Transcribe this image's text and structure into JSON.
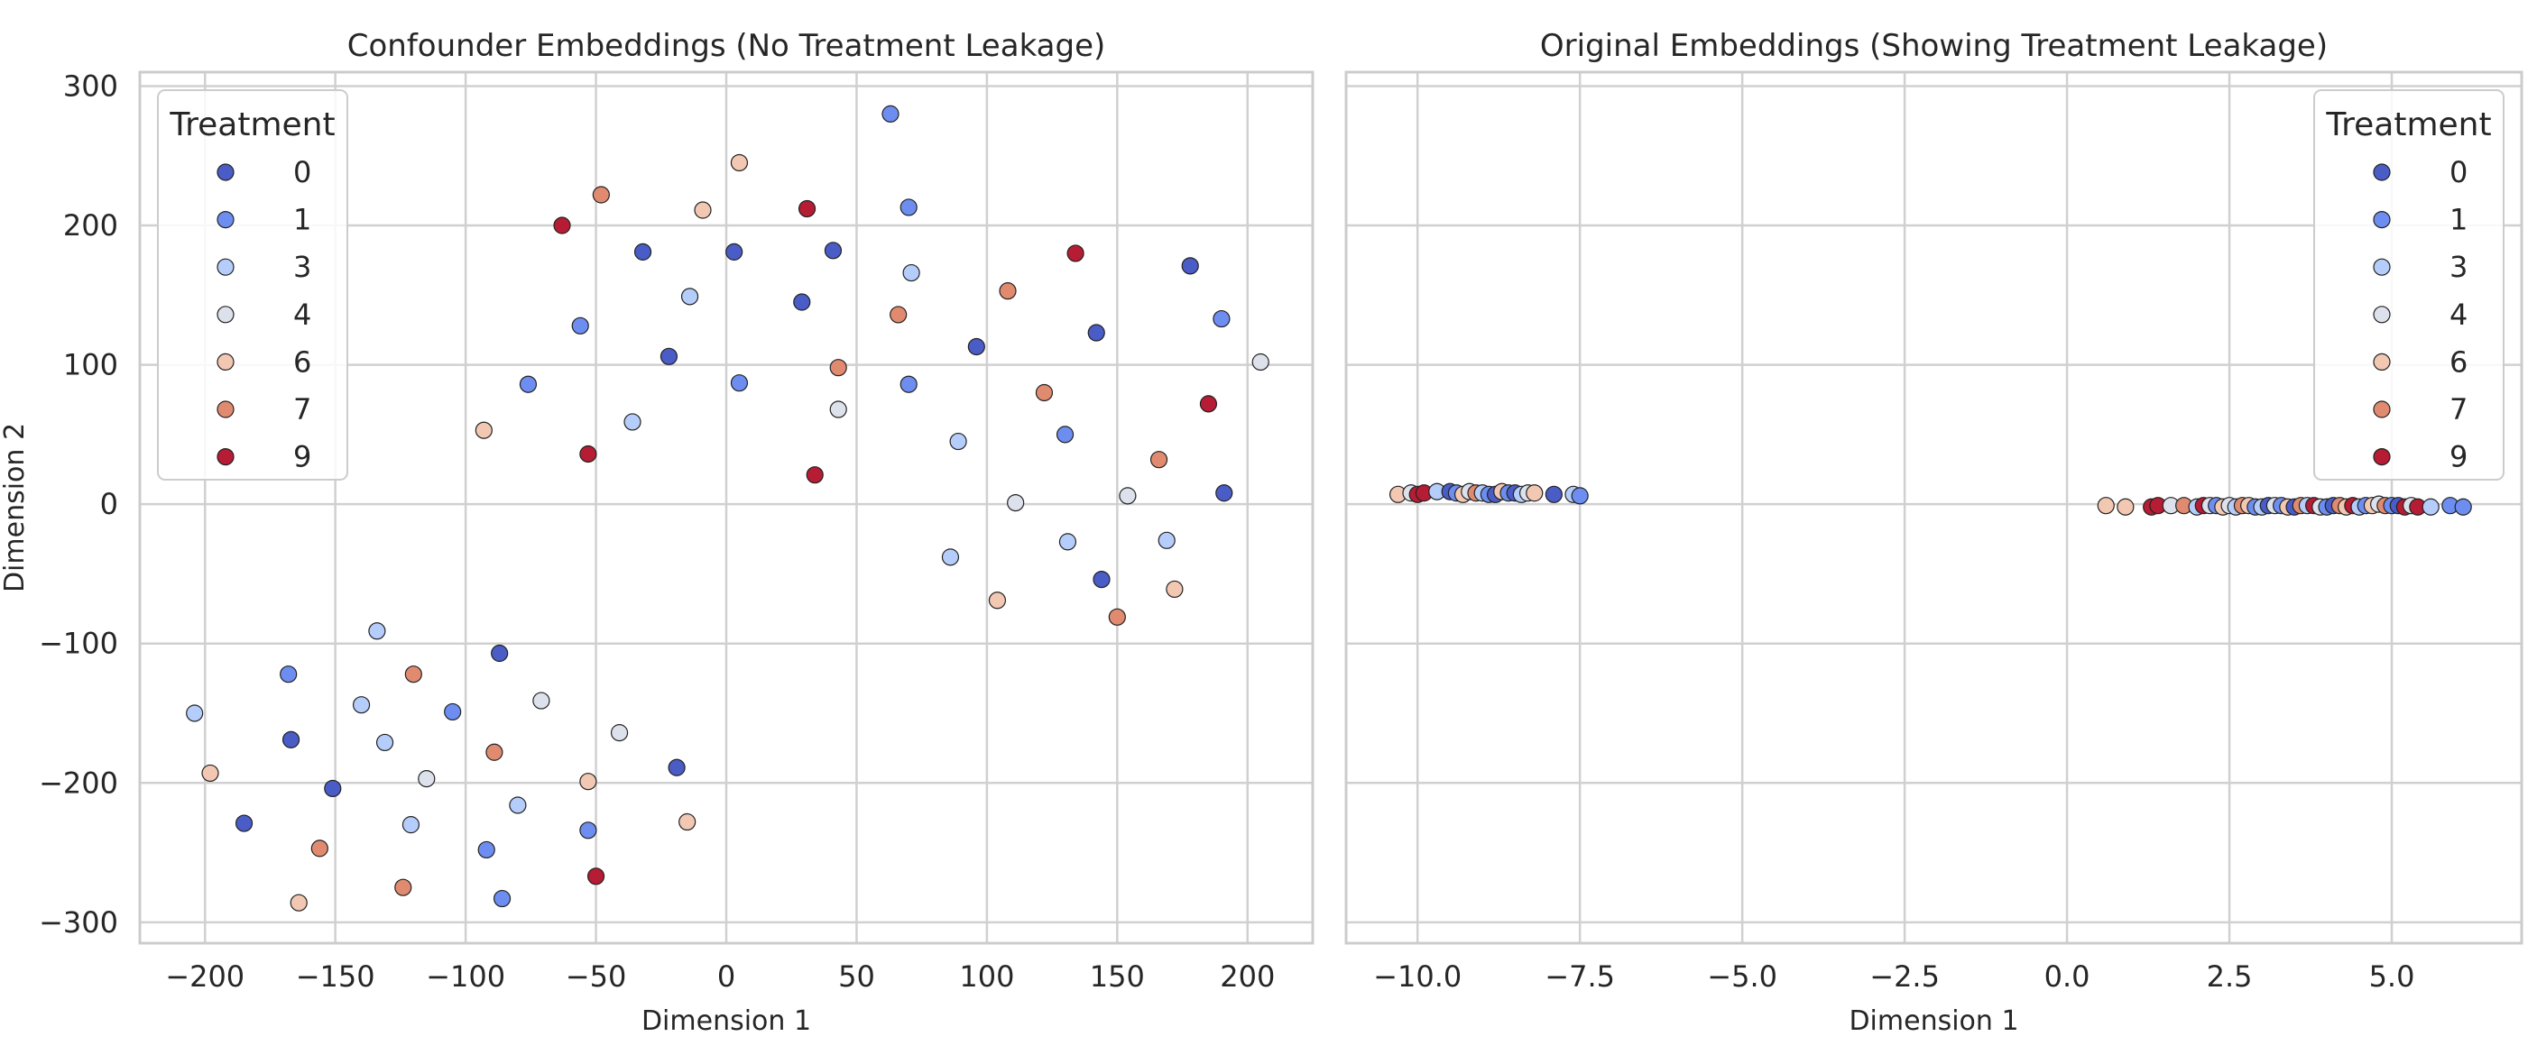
{
  "colors": {
    "0": "#4a5cc6",
    "1": "#6d8ef0",
    "3": "#b5cdfa",
    "4": "#dde1ec",
    "6": "#f2c8b2",
    "7": "#e08b70",
    "9": "#b61c33"
  },
  "chart_data": [
    {
      "type": "scatter",
      "title": "Confounder Embeddings (No Treatment Leakage)",
      "xlabel": "Dimension 1",
      "ylabel": "Dimension 2",
      "xlim": [
        -225,
        225
      ],
      "ylim": [
        -315,
        310
      ],
      "xticks": [
        -200,
        -150,
        -100,
        -50,
        0,
        50,
        100,
        150,
        200
      ],
      "xtick_labels": [
        "−200",
        "−150",
        "−100",
        "−50",
        "0",
        "50",
        "100",
        "150",
        "200"
      ],
      "yticks": [
        300,
        200,
        100,
        0,
        -100,
        -200,
        -300
      ],
      "ytick_labels": [
        "300",
        "200",
        "100",
        "0",
        "−100",
        "−200",
        "−300"
      ],
      "grid": true,
      "legend": {
        "title": "Treatment",
        "position": "upper-left",
        "entries": [
          "0",
          "1",
          "3",
          "4",
          "6",
          "7",
          "9"
        ]
      },
      "points": [
        {
          "x": 63,
          "y": 280,
          "t": 1
        },
        {
          "x": 5,
          "y": 245,
          "t": 6
        },
        {
          "x": -48,
          "y": 222,
          "t": 7
        },
        {
          "x": 70,
          "y": 213,
          "t": 1
        },
        {
          "x": 31,
          "y": 212,
          "t": 9
        },
        {
          "x": -9,
          "y": 211,
          "t": 6
        },
        {
          "x": -63,
          "y": 200,
          "t": 9
        },
        {
          "x": 41,
          "y": 182,
          "t": 0
        },
        {
          "x": -32,
          "y": 181,
          "t": 0
        },
        {
          "x": 3,
          "y": 181,
          "t": 0
        },
        {
          "x": 134,
          "y": 180,
          "t": 9
        },
        {
          "x": 178,
          "y": 171,
          "t": 0
        },
        {
          "x": 71,
          "y": 166,
          "t": 3
        },
        {
          "x": 108,
          "y": 153,
          "t": 7
        },
        {
          "x": -14,
          "y": 149,
          "t": 3
        },
        {
          "x": 29,
          "y": 145,
          "t": 0
        },
        {
          "x": 66,
          "y": 136,
          "t": 7
        },
        {
          "x": 190,
          "y": 133,
          "t": 1
        },
        {
          "x": -56,
          "y": 128,
          "t": 1
        },
        {
          "x": 142,
          "y": 123,
          "t": 0
        },
        {
          "x": 96,
          "y": 113,
          "t": 0
        },
        {
          "x": -22,
          "y": 106,
          "t": 0
        },
        {
          "x": 205,
          "y": 102,
          "t": 4
        },
        {
          "x": 43,
          "y": 98,
          "t": 7
        },
        {
          "x": 5,
          "y": 87,
          "t": 1
        },
        {
          "x": -76,
          "y": 86,
          "t": 1
        },
        {
          "x": 70,
          "y": 86,
          "t": 1
        },
        {
          "x": 122,
          "y": 80,
          "t": 7
        },
        {
          "x": 185,
          "y": 72,
          "t": 9
        },
        {
          "x": 43,
          "y": 68,
          "t": 4
        },
        {
          "x": -36,
          "y": 59,
          "t": 3
        },
        {
          "x": -93,
          "y": 53,
          "t": 6
        },
        {
          "x": 130,
          "y": 50,
          "t": 1
        },
        {
          "x": 89,
          "y": 45,
          "t": 3
        },
        {
          "x": -53,
          "y": 36,
          "t": 9
        },
        {
          "x": 166,
          "y": 32,
          "t": 7
        },
        {
          "x": 34,
          "y": 21,
          "t": 9
        },
        {
          "x": 191,
          "y": 8,
          "t": 0
        },
        {
          "x": 154,
          "y": 6,
          "t": 4
        },
        {
          "x": 111,
          "y": 1,
          "t": 4
        },
        {
          "x": 131,
          "y": -27,
          "t": 3
        },
        {
          "x": 169,
          "y": -26,
          "t": 3
        },
        {
          "x": 86,
          "y": -38,
          "t": 3
        },
        {
          "x": 144,
          "y": -54,
          "t": 0
        },
        {
          "x": 172,
          "y": -61,
          "t": 6
        },
        {
          "x": 104,
          "y": -69,
          "t": 6
        },
        {
          "x": 150,
          "y": -81,
          "t": 7
        },
        {
          "x": -134,
          "y": -91,
          "t": 3
        },
        {
          "x": -87,
          "y": -107,
          "t": 0
        },
        {
          "x": -168,
          "y": -122,
          "t": 1
        },
        {
          "x": -120,
          "y": -122,
          "t": 7
        },
        {
          "x": -71,
          "y": -141,
          "t": 4
        },
        {
          "x": -140,
          "y": -144,
          "t": 3
        },
        {
          "x": -105,
          "y": -149,
          "t": 1
        },
        {
          "x": -204,
          "y": -150,
          "t": 3
        },
        {
          "x": -41,
          "y": -164,
          "t": 4
        },
        {
          "x": -167,
          "y": -169,
          "t": 0
        },
        {
          "x": -131,
          "y": -171,
          "t": 3
        },
        {
          "x": -89,
          "y": -178,
          "t": 7
        },
        {
          "x": -19,
          "y": -189,
          "t": 0
        },
        {
          "x": -198,
          "y": -193,
          "t": 6
        },
        {
          "x": -115,
          "y": -197,
          "t": 4
        },
        {
          "x": -53,
          "y": -199,
          "t": 6
        },
        {
          "x": -151,
          "y": -204,
          "t": 0
        },
        {
          "x": -80,
          "y": -216,
          "t": 3
        },
        {
          "x": -185,
          "y": -229,
          "t": 0
        },
        {
          "x": -121,
          "y": -230,
          "t": 3
        },
        {
          "x": -15,
          "y": -228,
          "t": 6
        },
        {
          "x": -53,
          "y": -234,
          "t": 1
        },
        {
          "x": -156,
          "y": -247,
          "t": 7
        },
        {
          "x": -92,
          "y": -248,
          "t": 1
        },
        {
          "x": -50,
          "y": -267,
          "t": 9
        },
        {
          "x": -124,
          "y": -275,
          "t": 7
        },
        {
          "x": -86,
          "y": -283,
          "t": 1
        },
        {
          "x": -164,
          "y": -286,
          "t": 6
        }
      ]
    },
    {
      "type": "scatter",
      "title": "Original Embeddings (Showing Treatment Leakage)",
      "xlabel": "Dimension 1",
      "ylabel": "",
      "xlim": [
        -11.1,
        7.0
      ],
      "ylim": [
        -315,
        310
      ],
      "xticks": [
        -10,
        -7.5,
        -5,
        -2.5,
        0,
        2.5,
        5
      ],
      "xtick_labels": [
        "−10.0",
        "−7.5",
        "−5.0",
        "−2.5",
        "0.0",
        "2.5",
        "5.0"
      ],
      "grid": true,
      "legend": {
        "title": "Treatment",
        "position": "upper-right",
        "entries": [
          "0",
          "1",
          "3",
          "4",
          "6",
          "7",
          "9"
        ]
      },
      "points": [
        {
          "x": -10.3,
          "y": 7,
          "t": 6
        },
        {
          "x": -10.1,
          "y": 8,
          "t": 4
        },
        {
          "x": -10.0,
          "y": 7,
          "t": 9
        },
        {
          "x": -9.9,
          "y": 8,
          "t": 9
        },
        {
          "x": -9.7,
          "y": 9,
          "t": 3
        },
        {
          "x": -9.5,
          "y": 9,
          "t": 0
        },
        {
          "x": -9.4,
          "y": 8,
          "t": 1
        },
        {
          "x": -9.3,
          "y": 7,
          "t": 6
        },
        {
          "x": -9.2,
          "y": 9,
          "t": 4
        },
        {
          "x": -9.1,
          "y": 8,
          "t": 7
        },
        {
          "x": -9.0,
          "y": 8,
          "t": 3
        },
        {
          "x": -8.9,
          "y": 7,
          "t": 1
        },
        {
          "x": -8.8,
          "y": 7,
          "t": 0
        },
        {
          "x": -8.7,
          "y": 9,
          "t": 6
        },
        {
          "x": -8.6,
          "y": 8,
          "t": 1
        },
        {
          "x": -8.5,
          "y": 8,
          "t": 0
        },
        {
          "x": -8.4,
          "y": 7,
          "t": 3
        },
        {
          "x": -8.3,
          "y": 8,
          "t": 4
        },
        {
          "x": -8.2,
          "y": 8,
          "t": 6
        },
        {
          "x": -7.9,
          "y": 7,
          "t": 0
        },
        {
          "x": -7.6,
          "y": 7,
          "t": 3
        },
        {
          "x": -7.5,
          "y": 6,
          "t": 1
        },
        {
          "x": 0.6,
          "y": -1,
          "t": 6
        },
        {
          "x": 0.9,
          "y": -2,
          "t": 6
        },
        {
          "x": 1.3,
          "y": -2,
          "t": 9
        },
        {
          "x": 1.4,
          "y": -1,
          "t": 9
        },
        {
          "x": 1.6,
          "y": -1,
          "t": 4
        },
        {
          "x": 1.8,
          "y": -1,
          "t": 7
        },
        {
          "x": 2.0,
          "y": -2,
          "t": 3
        },
        {
          "x": 2.1,
          "y": -1,
          "t": 9
        },
        {
          "x": 2.2,
          "y": -1,
          "t": 4
        },
        {
          "x": 2.3,
          "y": -1,
          "t": 1
        },
        {
          "x": 2.4,
          "y": -2,
          "t": 6
        },
        {
          "x": 2.5,
          "y": -1,
          "t": 4
        },
        {
          "x": 2.6,
          "y": -2,
          "t": 3
        },
        {
          "x": 2.7,
          "y": -1,
          "t": 7
        },
        {
          "x": 2.8,
          "y": -1,
          "t": 6
        },
        {
          "x": 2.9,
          "y": -2,
          "t": 1
        },
        {
          "x": 3.0,
          "y": -2,
          "t": 3
        },
        {
          "x": 3.1,
          "y": -1,
          "t": 0
        },
        {
          "x": 3.2,
          "y": -1,
          "t": 4
        },
        {
          "x": 3.3,
          "y": -1,
          "t": 1
        },
        {
          "x": 3.4,
          "y": -2,
          "t": 6
        },
        {
          "x": 3.5,
          "y": -2,
          "t": 0
        },
        {
          "x": 3.6,
          "y": -1,
          "t": 7
        },
        {
          "x": 3.7,
          "y": -1,
          "t": 3
        },
        {
          "x": 3.8,
          "y": -1,
          "t": 9
        },
        {
          "x": 3.9,
          "y": -2,
          "t": 4
        },
        {
          "x": 4.0,
          "y": -2,
          "t": 1
        },
        {
          "x": 4.1,
          "y": -1,
          "t": 0
        },
        {
          "x": 4.2,
          "y": -1,
          "t": 7
        },
        {
          "x": 4.3,
          "y": -2,
          "t": 6
        },
        {
          "x": 4.4,
          "y": -1,
          "t": 9
        },
        {
          "x": 4.5,
          "y": -2,
          "t": 3
        },
        {
          "x": 4.6,
          "y": -1,
          "t": 1
        },
        {
          "x": 4.7,
          "y": -1,
          "t": 6
        },
        {
          "x": 4.8,
          "y": 0,
          "t": 4
        },
        {
          "x": 4.9,
          "y": -1,
          "t": 7
        },
        {
          "x": 5.0,
          "y": -1,
          "t": 1
        },
        {
          "x": 5.1,
          "y": -1,
          "t": 0
        },
        {
          "x": 5.2,
          "y": -2,
          "t": 9
        },
        {
          "x": 5.3,
          "y": -1,
          "t": 4
        },
        {
          "x": 5.4,
          "y": -2,
          "t": 9
        },
        {
          "x": 5.6,
          "y": -2,
          "t": 3
        },
        {
          "x": 5.9,
          "y": -1,
          "t": 1
        },
        {
          "x": 6.1,
          "y": -2,
          "t": 1
        }
      ]
    }
  ]
}
